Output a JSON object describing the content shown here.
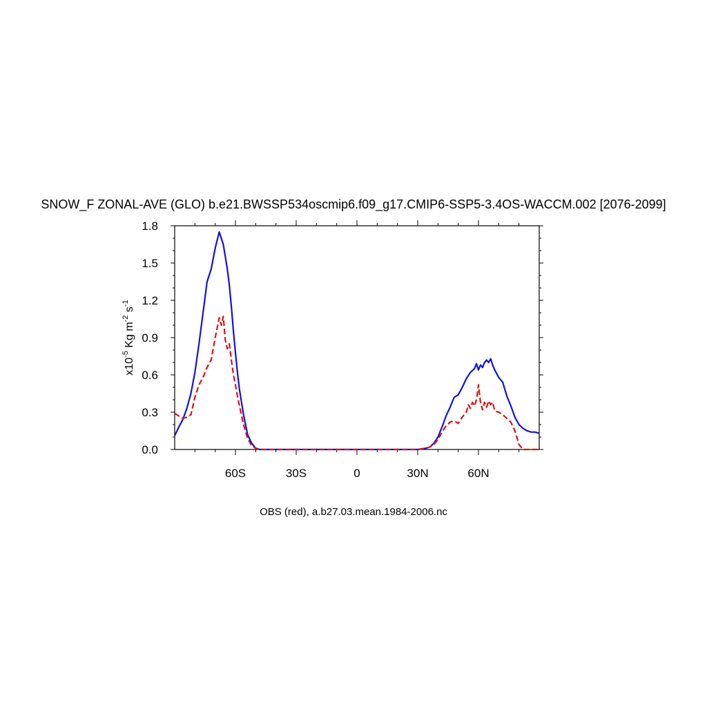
{
  "chart_data": {
    "type": "line",
    "title": "SNOW_F ZONAL-AVE (GLO) b.e21.BWSSP534oscmip6.f09_g17.CMIP6-SSP5-3.4OS-WACCM.002 [2076-2099]",
    "ylabel": {
      "prefix": "x10",
      "exp1": "-5",
      "units": " Kg m",
      "exp2": "-2",
      "units2": " s",
      "exp3": "-1"
    },
    "footer": "OBS (red), a.b27.03.mean.1984-2006.nc",
    "xlim": [
      -90,
      90
    ],
    "ylim": [
      0,
      1.8
    ],
    "x_ticks": [
      {
        "value": -60,
        "label": "60S"
      },
      {
        "value": -30,
        "label": "30S"
      },
      {
        "value": 0,
        "label": "0"
      },
      {
        "value": 30,
        "label": "30N"
      },
      {
        "value": 60,
        "label": "60N"
      }
    ],
    "y_ticks": [
      {
        "value": 0.0,
        "label": "0.0"
      },
      {
        "value": 0.3,
        "label": "0.3"
      },
      {
        "value": 0.6,
        "label": "0.6"
      },
      {
        "value": 0.9,
        "label": "0.9"
      },
      {
        "value": 1.2,
        "label": "1.2"
      },
      {
        "value": 1.5,
        "label": "1.5"
      },
      {
        "value": 1.8,
        "label": "1.8"
      }
    ],
    "series": [
      {
        "color": "#1010e0",
        "style": "solid",
        "x": [
          -90,
          -88,
          -86,
          -84,
          -82,
          -80,
          -78,
          -76,
          -74,
          -72,
          -70,
          -68,
          -66,
          -64,
          -63,
          -62,
          -61,
          -60,
          -59,
          -58,
          -56,
          -54,
          -52,
          -50,
          -48,
          -46,
          -44,
          -40,
          -30,
          -20,
          -10,
          0,
          10,
          20,
          30,
          34,
          36,
          38,
          40,
          42,
          44,
          46,
          48,
          50,
          52,
          54,
          56,
          58,
          59,
          60,
          61,
          62,
          63,
          64,
          65,
          66,
          67,
          68,
          70,
          72,
          74,
          76,
          78,
          80,
          82,
          84,
          86,
          88,
          90
        ],
        "y": [
          0.11,
          0.18,
          0.24,
          0.33,
          0.45,
          0.62,
          0.85,
          1.1,
          1.35,
          1.45,
          1.62,
          1.75,
          1.65,
          1.45,
          1.32,
          1.15,
          0.95,
          0.78,
          0.62,
          0.48,
          0.28,
          0.12,
          0.05,
          0.01,
          0.0,
          0.0,
          0.0,
          0.0,
          0.0,
          0.0,
          0.0,
          0.0,
          0.0,
          0.0,
          0.0,
          0.01,
          0.02,
          0.05,
          0.1,
          0.18,
          0.27,
          0.34,
          0.42,
          0.44,
          0.5,
          0.57,
          0.62,
          0.65,
          0.69,
          0.64,
          0.68,
          0.66,
          0.7,
          0.72,
          0.7,
          0.73,
          0.68,
          0.64,
          0.58,
          0.54,
          0.43,
          0.35,
          0.26,
          0.2,
          0.17,
          0.15,
          0.14,
          0.14,
          0.13
        ]
      },
      {
        "color": "#e01010",
        "style": "dashed",
        "x": [
          -90,
          -88,
          -86,
          -84,
          -82,
          -80,
          -78,
          -76,
          -74,
          -72,
          -70,
          -68,
          -67,
          -66,
          -65,
          -64,
          -63,
          -62,
          -61,
          -60,
          -59,
          -58,
          -56,
          -54,
          -52,
          -50,
          -48,
          -46,
          -44,
          -40,
          -30,
          -20,
          -10,
          0,
          10,
          20,
          30,
          34,
          36,
          38,
          40,
          42,
          44,
          46,
          48,
          50,
          52,
          54,
          55,
          56,
          57,
          58,
          59,
          60,
          61,
          62,
          63,
          64,
          65,
          66,
          67,
          68,
          70,
          72,
          74,
          76,
          78,
          80,
          82,
          84,
          86,
          88,
          90
        ],
        "y": [
          0.29,
          0.27,
          0.25,
          0.26,
          0.28,
          0.42,
          0.52,
          0.58,
          0.66,
          0.72,
          0.9,
          1.06,
          1.0,
          1.07,
          0.88,
          0.81,
          0.85,
          0.72,
          0.6,
          0.52,
          0.43,
          0.35,
          0.2,
          0.09,
          0.03,
          0.01,
          0.0,
          0.0,
          0.0,
          0.0,
          0.0,
          0.0,
          0.0,
          0.0,
          0.0,
          0.0,
          0.0,
          0.01,
          0.02,
          0.04,
          0.08,
          0.14,
          0.19,
          0.22,
          0.23,
          0.21,
          0.26,
          0.3,
          0.36,
          0.33,
          0.38,
          0.35,
          0.4,
          0.52,
          0.38,
          0.32,
          0.38,
          0.34,
          0.39,
          0.36,
          0.38,
          0.31,
          0.3,
          0.28,
          0.25,
          0.22,
          0.15,
          0.04,
          0.0,
          0.0,
          0.0,
          0.0,
          0.0
        ]
      }
    ],
    "grid": false,
    "legend": "none"
  }
}
